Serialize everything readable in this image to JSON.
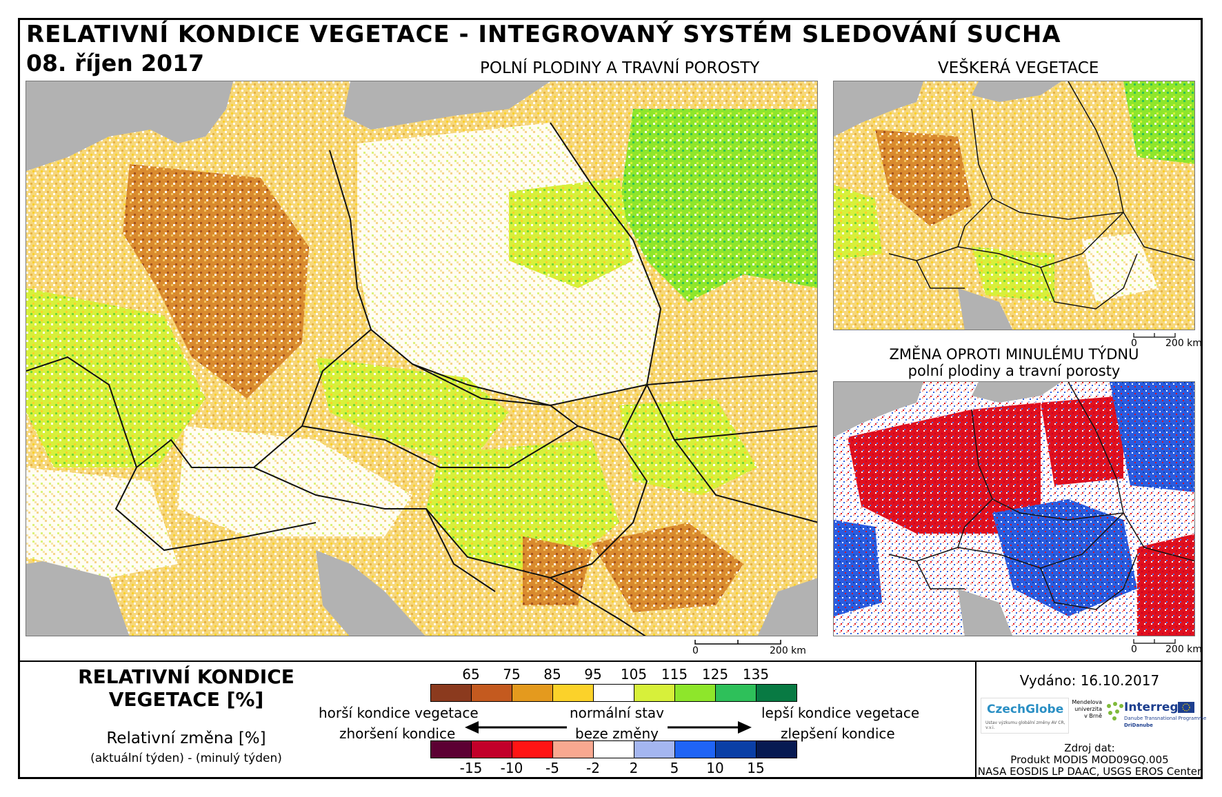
{
  "title": "RELATIVNÍ KONDICE VEGETACE - INTEGROVANÝ SYSTÉM SLEDOVÁNÍ SUCHA",
  "date": "08. říjen 2017",
  "maps": {
    "main": {
      "title": "POLNÍ PLODINY A TRAVNÍ POROSTY",
      "scale": [
        "0",
        "200 km"
      ]
    },
    "all": {
      "title": "VEŠKERÁ VEGETACE",
      "scale": [
        "0",
        "200 km"
      ]
    },
    "change": {
      "title1": "ZMĚNA OPROTI MINULÉMU TÝDNU",
      "title2": "polní plodiny a travní porosty",
      "scale": [
        "0",
        "200 km"
      ]
    }
  },
  "legend": {
    "title1": "RELATIVNÍ KONDICE",
    "title2": "VEGETACE [%]",
    "change_title": "Relativní změna [%]",
    "change_sub": "(aktuální týden) - (minulý týden)",
    "condition_ticks": [
      "65",
      "75",
      "85",
      "95",
      "105",
      "115",
      "125",
      "135"
    ],
    "condition_colors": [
      "#8b3a1e",
      "#c45a1f",
      "#e49a1e",
      "#fbd22a",
      "#ffffff",
      "#d7f03a",
      "#8ee62b",
      "#2ec05a",
      "#087a43"
    ],
    "change_ticks": [
      "-15",
      "-10",
      "-5",
      "-2",
      "2",
      "5",
      "10",
      "15"
    ],
    "change_colors": [
      "#5c0033",
      "#c2002a",
      "#ff1414",
      "#f8a890",
      "#ffffff",
      "#a4b6f0",
      "#1f64f5",
      "#0a3fa6",
      "#071a52"
    ],
    "worse": "horší kondice vegetace",
    "worse_change": "zhoršení kondice",
    "normal": "normální stav",
    "no_change": "beze změny",
    "better": "lepší kondice vegetace",
    "better_change": "zlepšení kondice"
  },
  "info": {
    "issued": "Vydáno: 16.10.2017",
    "source_title": "Zdroj dat:",
    "source1": "Produkt MODIS MOD09GQ.005",
    "source2": "NASA EOSDIS LP DAAC, USGS EROS Center"
  },
  "logos": {
    "czechglobe": "CzechGlobe",
    "czechglobe_sub": "Ústav výzkumu globální změny AV ČR, v.v.i.",
    "mendel": [
      "Mendelova",
      "univerzita",
      "v Brně"
    ],
    "interreg": "Interreg",
    "interreg_sub1": "Danube Transnational Programme",
    "interreg_sub2": "DriDanube"
  }
}
